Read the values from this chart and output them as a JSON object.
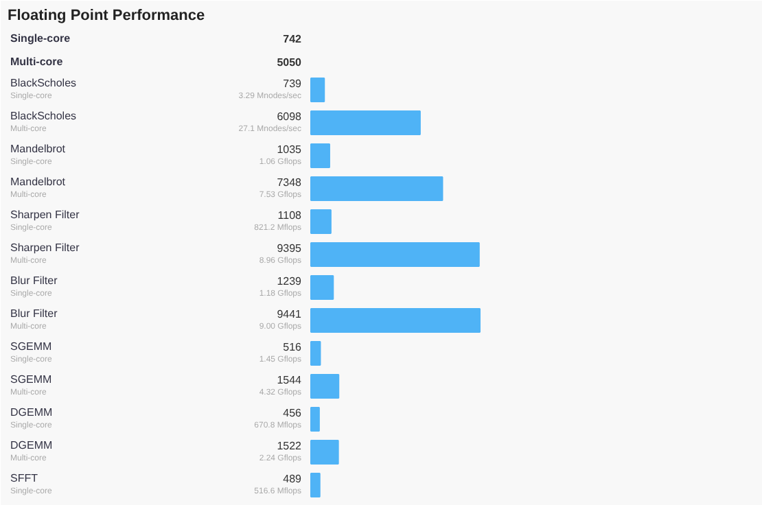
{
  "chart_data": {
    "type": "bar",
    "orientation": "horizontal",
    "title": "Floating Point Performance",
    "categories": [
      "Single-core",
      "Multi-core",
      "BlackScholes\nSingle-core",
      "BlackScholes\nMulti-core",
      "Mandelbrot\nSingle-core",
      "Mandelbrot\nMulti-core",
      "Sharpen Filter\nSingle-core",
      "Sharpen Filter\nMulti-core",
      "Blur Filter\nSingle-core",
      "Blur Filter\nMulti-core",
      "SGEMM\nSingle-core",
      "SGEMM\nMulti-core",
      "DGEMM\nSingle-core",
      "DGEMM\nMulti-core",
      "SFFT\nSingle-core"
    ],
    "values": [
      null,
      null,
      739,
      6098,
      1035,
      7348,
      1108,
      9395,
      1239,
      9441,
      516,
      1544,
      456,
      1522,
      489
    ],
    "value_labels": [
      "742",
      "5050",
      "739",
      "6098",
      "1035",
      "7348",
      "1108",
      "9395",
      "1239",
      "9441",
      "516",
      "1544",
      "456",
      "1522",
      "489"
    ],
    "color": "#4fb3f6",
    "annotations": [
      "3.29 Mnodes/sec",
      "27.1 Mnodes/sec",
      "1.06 Gflops",
      "7.53 Gflops",
      "821.2 Mflops",
      "8.96 Gflops",
      "1.18 Gflops",
      "9.00 Gflops",
      "1.45 Gflops",
      "4.32 Gflops",
      "670.8 Mflops",
      "2.24 Gflops",
      "516.6 Mflops"
    ]
  }
}
